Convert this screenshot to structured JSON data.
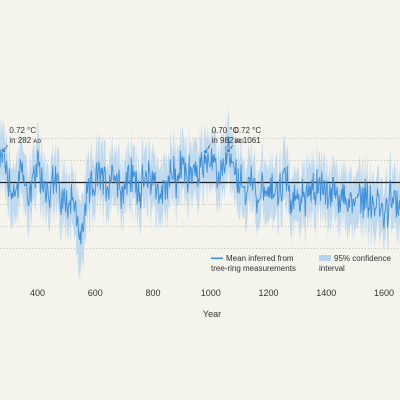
{
  "chart_data": {
    "type": "line",
    "title": "",
    "xlabel": "Year",
    "ylabel": "",
    "xlim": [
      160,
      1680
    ],
    "ylim": [
      -2.2,
      1.4
    ],
    "x_ticks": [
      "400",
      "600",
      "800",
      "1000",
      "1200",
      "1400",
      "1600"
    ],
    "grid": "horizontal dotted",
    "reference_line": 0,
    "legend_position": "bottom-right",
    "colors": {
      "mean": "#3d8fd9",
      "band": "#b5d3f0",
      "baseline": "#222222",
      "grid": "#b8b8b8",
      "background": "#f4f3ec"
    },
    "series": [
      {
        "name": "Mean inferred from tree-ring measurements",
        "kind": "line",
        "x": [
          200,
          220,
          240,
          260,
          282,
          300,
          320,
          340,
          360,
          380,
          400,
          420,
          440,
          460,
          480,
          500,
          520,
          536,
          545,
          560,
          580,
          600,
          620,
          640,
          660,
          680,
          700,
          720,
          740,
          760,
          780,
          800,
          820,
          840,
          860,
          880,
          900,
          920,
          940,
          960,
          982,
          1000,
          1020,
          1040,
          1061,
          1080,
          1100,
          1120,
          1140,
          1160,
          1180,
          1200,
          1220,
          1240,
          1260,
          1280,
          1300,
          1320,
          1340,
          1360,
          1380,
          1400,
          1420,
          1440,
          1460,
          1480,
          1500,
          1520,
          1540,
          1560,
          1580,
          1600,
          1620,
          1640,
          1660,
          1680
        ],
        "y": [
          -0.1,
          0.1,
          -0.2,
          0.2,
          0.72,
          0.1,
          -0.3,
          0.2,
          -0.1,
          -0.2,
          0.3,
          0.0,
          -0.2,
          0.1,
          -0.3,
          -0.5,
          -0.2,
          -0.9,
          -1.3,
          -0.8,
          -0.2,
          0.0,
          0.2,
          -0.1,
          0.3,
          0.0,
          -0.2,
          0.2,
          0.0,
          -0.1,
          0.1,
          0.2,
          -0.3,
          -0.2,
          0.3,
          0.0,
          0.4,
          0.2,
          0.3,
          0.1,
          0.7,
          0.4,
          0.1,
          0.3,
          0.72,
          0.2,
          0.0,
          -0.2,
          0.1,
          -0.3,
          0.0,
          -0.4,
          -0.1,
          -0.2,
          0.2,
          -0.6,
          -0.3,
          -0.4,
          -0.1,
          -0.2,
          0.0,
          -0.3,
          -0.2,
          -0.5,
          -0.2,
          -0.6,
          -0.3,
          -0.4,
          -0.2,
          -0.6,
          -0.5,
          -0.8,
          -0.4,
          -0.6,
          -0.3,
          -0.4
        ]
      },
      {
        "name": "95% confidence interval",
        "kind": "band",
        "x": [
          200,
          220,
          240,
          260,
          282,
          300,
          320,
          340,
          360,
          380,
          400,
          420,
          440,
          460,
          480,
          500,
          520,
          536,
          545,
          560,
          580,
          600,
          620,
          640,
          660,
          680,
          700,
          720,
          740,
          760,
          780,
          800,
          820,
          840,
          860,
          880,
          900,
          920,
          940,
          960,
          982,
          1000,
          1020,
          1040,
          1061,
          1080,
          1100,
          1120,
          1140,
          1160,
          1180,
          1200,
          1220,
          1240,
          1260,
          1280,
          1300,
          1320,
          1340,
          1360,
          1380,
          1400,
          1420,
          1440,
          1460,
          1480,
          1500,
          1520,
          1540,
          1560,
          1580,
          1600,
          1620,
          1640,
          1660,
          1680
        ],
        "lower": [
          -0.6,
          -0.4,
          -0.7,
          -0.3,
          0.2,
          -0.4,
          -0.8,
          -0.3,
          -0.6,
          -0.7,
          -0.2,
          -0.5,
          -0.7,
          -0.4,
          -0.8,
          -1.0,
          -0.7,
          -1.5,
          -2.0,
          -1.4,
          -0.7,
          -0.5,
          -0.3,
          -0.6,
          -0.2,
          -0.5,
          -0.7,
          -0.3,
          -0.5,
          -0.6,
          -0.4,
          -0.3,
          -0.8,
          -0.7,
          -0.2,
          -0.5,
          -0.1,
          -0.3,
          -0.2,
          -0.4,
          0.2,
          -0.1,
          -0.4,
          -0.2,
          0.2,
          -0.3,
          -0.5,
          -0.7,
          -0.4,
          -0.8,
          -0.5,
          -0.9,
          -0.6,
          -0.7,
          -0.3,
          -1.1,
          -0.8,
          -0.9,
          -0.6,
          -0.7,
          -0.5,
          -0.8,
          -0.7,
          -1.0,
          -0.7,
          -1.1,
          -0.8,
          -0.9,
          -0.7,
          -1.1,
          -1.0,
          -1.3,
          -0.9,
          -1.1,
          -0.8,
          -0.9
        ],
        "upper": [
          0.4,
          0.6,
          0.3,
          0.7,
          1.2,
          0.6,
          0.2,
          0.7,
          0.4,
          0.3,
          0.8,
          0.5,
          0.3,
          0.6,
          0.2,
          0.0,
          0.3,
          -0.3,
          -0.6,
          -0.2,
          0.3,
          0.5,
          0.7,
          0.4,
          0.8,
          0.5,
          0.3,
          0.7,
          0.5,
          0.4,
          0.6,
          0.7,
          0.2,
          0.3,
          0.8,
          0.5,
          0.9,
          0.7,
          0.8,
          0.6,
          1.2,
          0.9,
          0.6,
          0.8,
          1.2,
          0.7,
          0.5,
          0.3,
          0.6,
          0.2,
          0.5,
          0.1,
          0.4,
          0.3,
          0.7,
          -0.1,
          0.2,
          0.1,
          0.4,
          0.3,
          0.5,
          0.2,
          0.3,
          0.0,
          0.3,
          -0.1,
          0.2,
          0.1,
          0.3,
          -0.1,
          0.0,
          -0.3,
          0.1,
          -0.1,
          0.2,
          0.1
        ]
      }
    ],
    "annotations": [
      {
        "x": 282,
        "y": 0.72,
        "line1": "0.72 °C",
        "line2_prefix": "in 282 ",
        "line2_suffix": "AD"
      },
      {
        "x": 982,
        "y": 0.7,
        "line1": "0.70 °C",
        "line2_prefix": "in 982 ",
        "line2_suffix": "AD"
      },
      {
        "x": 1061,
        "y": 0.72,
        "line1": "0.72 °C",
        "line2_prefix": "in 1061",
        "line2_suffix": ""
      }
    ]
  },
  "legend": {
    "mean_line1": "Mean inferred from",
    "mean_line2": "tree-ring measurements",
    "band_line1": "95% confidence",
    "band_line2": "interval"
  }
}
